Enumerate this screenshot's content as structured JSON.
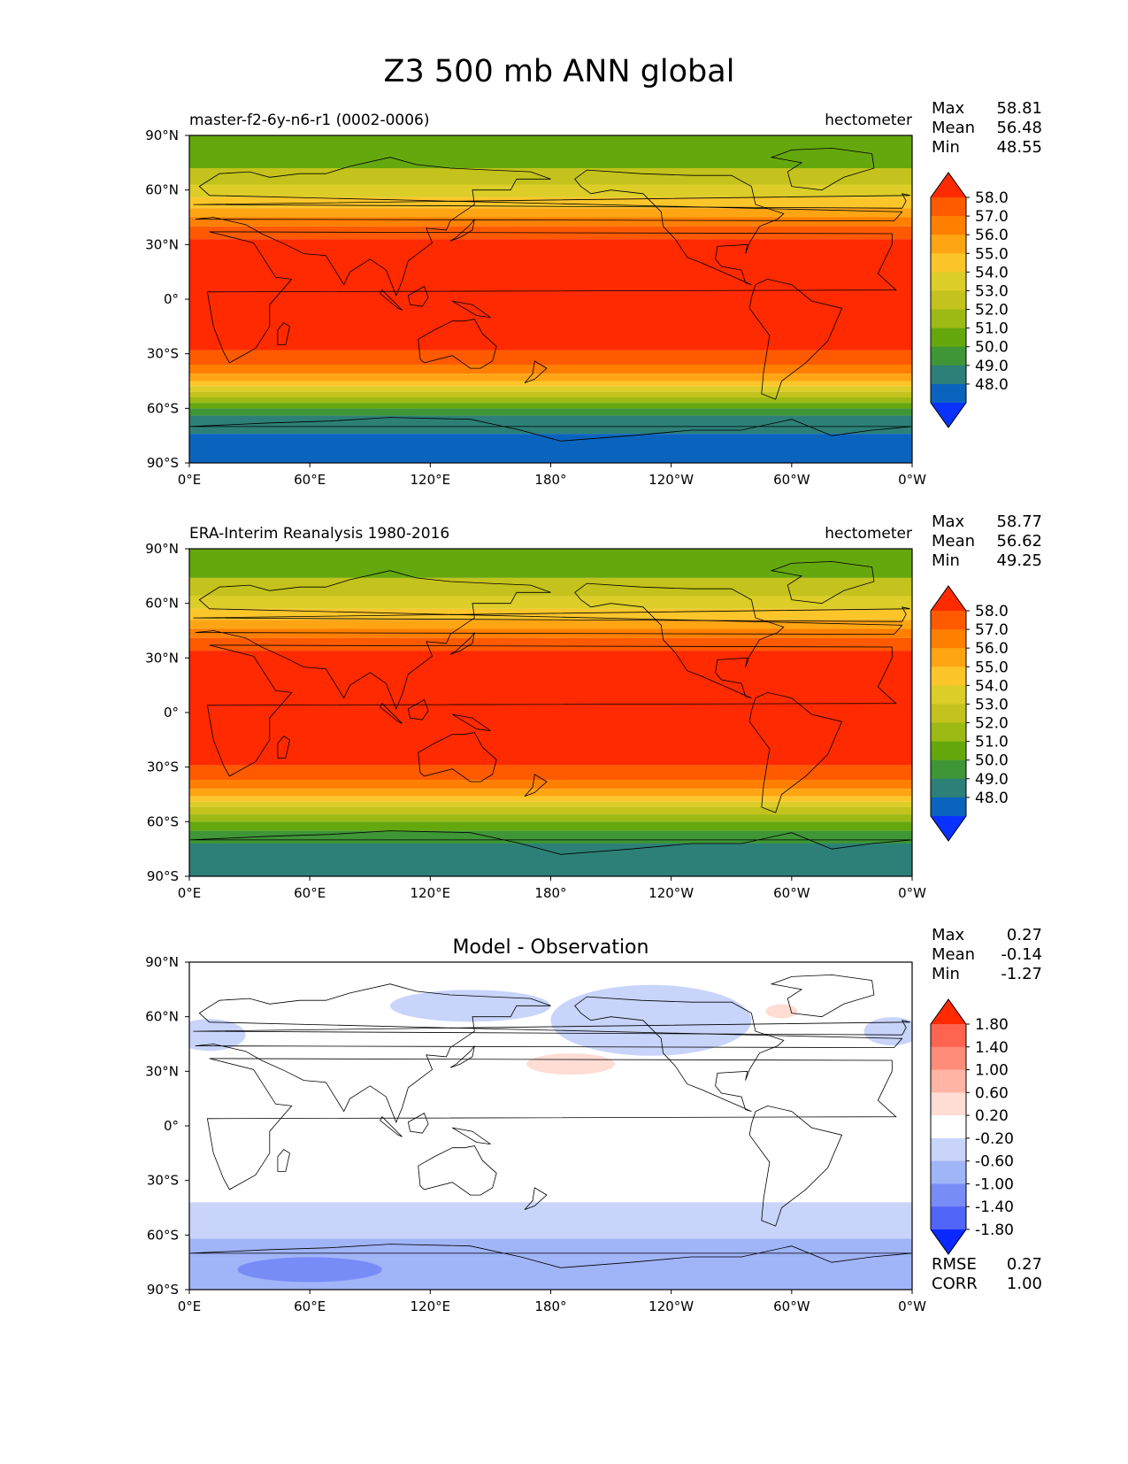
{
  "figure_title": "Z3 500 mb ANN global",
  "x_ticks": [
    "0°E",
    "60°E",
    "120°E",
    "180°",
    "120°W",
    "60°W",
    "0°W"
  ],
  "y_ticks": [
    "90°N",
    "60°N",
    "30°N",
    "0°",
    "30°S",
    "60°S",
    "90°S"
  ],
  "stat_labels": [
    "Max",
    "Mean",
    "Min"
  ],
  "panels": [
    {
      "id": "test",
      "title_left": "master-f2-6y-n6-r1 (0002-0006)",
      "title_center": "",
      "title_right": "hectometer",
      "stats": [
        "58.81",
        "56.48",
        "48.55"
      ],
      "colorbar": {
        "levels": [
          "58.0",
          "57.0",
          "56.0",
          "55.0",
          "54.0",
          "53.0",
          "52.0",
          "51.0",
          "50.0",
          "49.0",
          "48.0"
        ],
        "colors": [
          "#FF2A00",
          "#FF5A00",
          "#FF7F00",
          "#FFA514",
          "#FCC62A",
          "#DCCD28",
          "#C4C21C",
          "#9DBA14",
          "#64A80E",
          "#3E9636",
          "#2D8078",
          "#0A64BE",
          "#0A32FF"
        ]
      }
    },
    {
      "id": "reference",
      "title_left": "ERA-Interim Reanalysis 1980-2016",
      "title_center": "",
      "title_right": "hectometer",
      "stats": [
        "58.77",
        "56.62",
        "49.25"
      ],
      "colorbar": {
        "levels": [
          "58.0",
          "57.0",
          "56.0",
          "55.0",
          "54.0",
          "53.0",
          "52.0",
          "51.0",
          "50.0",
          "49.0",
          "48.0"
        ],
        "colors": [
          "#FF2A00",
          "#FF5A00",
          "#FF7F00",
          "#FFA514",
          "#FCC62A",
          "#DCCD28",
          "#C4C21C",
          "#9DBA14",
          "#64A80E",
          "#3E9636",
          "#2D8078",
          "#0A64BE",
          "#0A32FF"
        ]
      }
    },
    {
      "id": "difference",
      "title_left": "",
      "title_center": "Model - Observation",
      "title_right": "",
      "stats": [
        "0.27",
        "-0.14",
        "-1.27"
      ],
      "colorbar": {
        "levels": [
          "1.80",
          "1.40",
          "1.00",
          "0.60",
          "0.20",
          "-0.20",
          "-0.60",
          "-1.00",
          "-1.40",
          "-1.80"
        ],
        "colors": [
          "#FF2A00",
          "#FF6450",
          "#FF8C78",
          "#FFB4A4",
          "#FFDCD4",
          "#FFFFFF",
          "#C8D4FA",
          "#A0B4F8",
          "#788CF8",
          "#5064F8",
          "#0A28FF"
        ]
      },
      "metrics": [
        {
          "label": "RMSE",
          "value": "0.27"
        },
        {
          "label": "CORR",
          "value": "1.00"
        }
      ]
    }
  ]
}
